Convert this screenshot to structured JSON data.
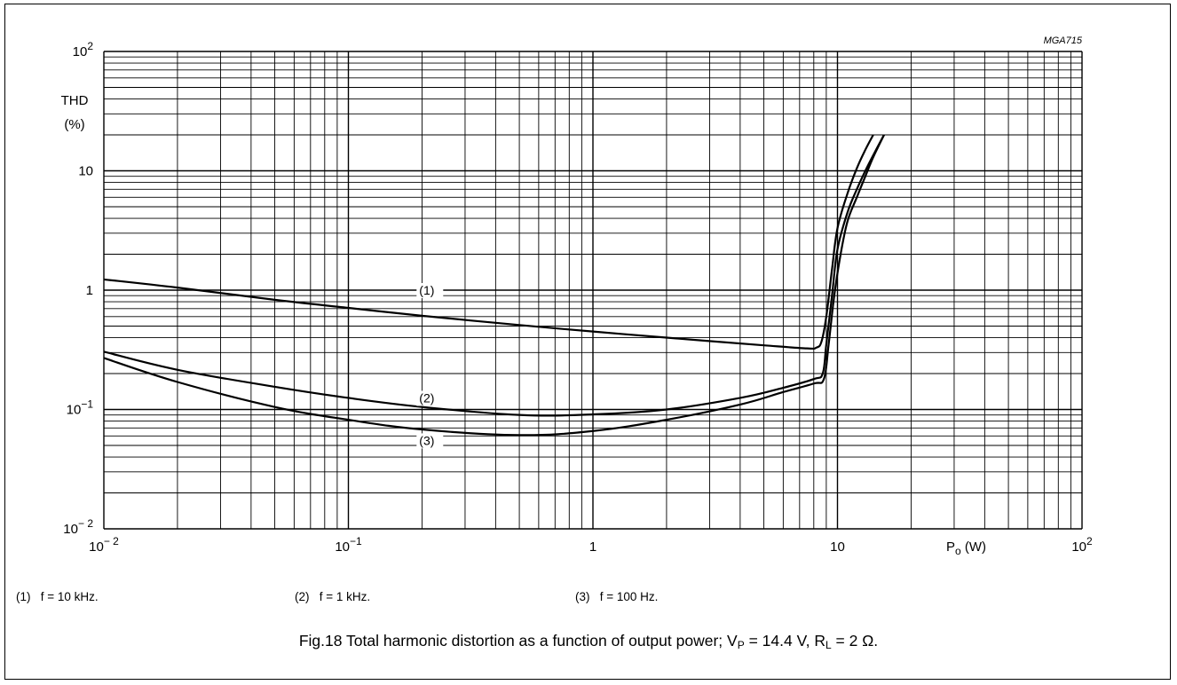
{
  "figure_code": "MGA715",
  "caption": {
    "prefix": "Fig.18  Total harmonic distortion as a function of output power; V",
    "vp_sub": "P",
    "vp_value": " = 14.4 V, R",
    "rl_sub": "L",
    "rl_value": " = 2 Ω."
  },
  "legend": [
    {
      "tag": "(1)",
      "text": "f = 10 kHz."
    },
    {
      "tag": "(2)",
      "text": "f = 1 kHz."
    },
    {
      "tag": "(3)",
      "text": "f = 100 Hz."
    }
  ],
  "chart_data": {
    "type": "line",
    "x_scale": "log",
    "y_scale": "log",
    "xlim": [
      0.01,
      100
    ],
    "ylim": [
      0.01,
      100
    ],
    "xlabel": {
      "main": "P",
      "sub": "o",
      "unit": " (W)"
    },
    "ylabel": [
      "THD",
      "(%)"
    ],
    "x_ticks": [
      {
        "value": 0.01,
        "base": "10",
        "exp": "− 2"
      },
      {
        "value": 0.1,
        "base": "10",
        "exp": "−1"
      },
      {
        "value": 1,
        "text": "1"
      },
      {
        "value": 10,
        "text": "10"
      },
      {
        "value": 100,
        "base": "10",
        "exp": "2"
      }
    ],
    "y_ticks": [
      {
        "value": 100,
        "base": "10",
        "exp": "2"
      },
      {
        "value": 10,
        "text": "10"
      },
      {
        "value": 1,
        "text": "1"
      },
      {
        "value": 0.1,
        "base": "10",
        "exp": "−1"
      },
      {
        "value": 0.01,
        "base": "10",
        "exp": "− 2"
      }
    ],
    "grid": true,
    "series": [
      {
        "name": "(1)",
        "label_at": [
          0.19,
          1.0
        ],
        "x": [
          0.01,
          0.02,
          0.05,
          0.1,
          0.2,
          0.5,
          1,
          2,
          5,
          7.5,
          8.2,
          8.6,
          9.0,
          9.5,
          10,
          11,
          12,
          13,
          14
        ],
        "y": [
          1.23,
          1.05,
          0.83,
          0.71,
          0.61,
          0.51,
          0.45,
          0.4,
          0.345,
          0.325,
          0.33,
          0.37,
          0.6,
          1.5,
          3.3,
          6.5,
          10.5,
          15.0,
          20.0
        ]
      },
      {
        "name": "(2)",
        "label_at": [
          0.19,
          0.125
        ],
        "x": [
          0.01,
          0.02,
          0.05,
          0.1,
          0.2,
          0.5,
          1,
          2,
          4,
          6,
          8,
          8.7,
          9.0,
          9.5,
          10,
          11,
          12,
          13,
          14,
          15.5
        ],
        "y": [
          0.305,
          0.215,
          0.155,
          0.125,
          0.105,
          0.09,
          0.091,
          0.1,
          0.125,
          0.152,
          0.18,
          0.2,
          0.35,
          0.9,
          2.2,
          4.5,
          7.0,
          10.0,
          13.5,
          20.0
        ]
      },
      {
        "name": "(3)",
        "label_at": [
          0.19,
          0.055
        ],
        "x": [
          0.01,
          0.02,
          0.05,
          0.1,
          0.2,
          0.5,
          1,
          2,
          4,
          6,
          8,
          8.8,
          9.2,
          9.7,
          10.3,
          11,
          12,
          13,
          14,
          15.5
        ],
        "y": [
          0.27,
          0.17,
          0.105,
          0.082,
          0.068,
          0.061,
          0.066,
          0.082,
          0.11,
          0.14,
          0.165,
          0.18,
          0.35,
          0.9,
          2.0,
          3.8,
          6.0,
          9.0,
          13.0,
          20.0
        ]
      }
    ]
  }
}
